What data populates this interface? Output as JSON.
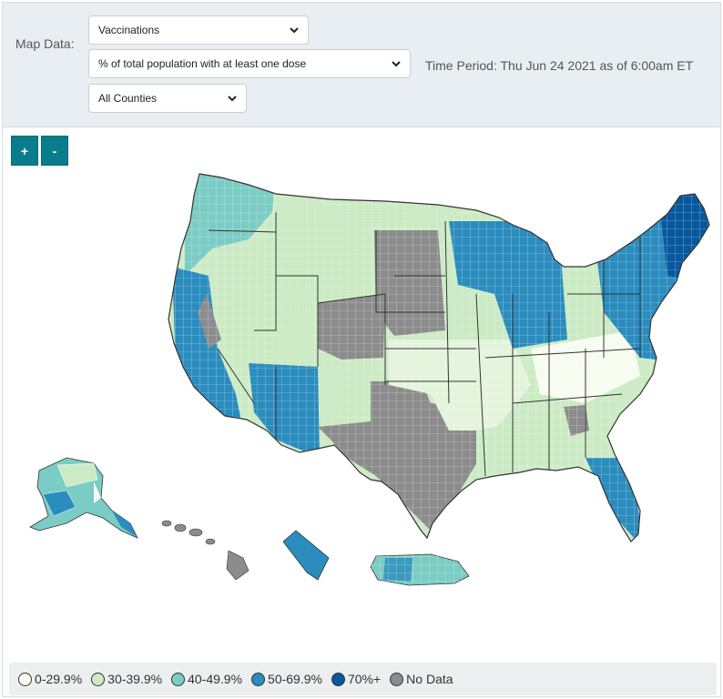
{
  "controls": {
    "map_data_label": "Map Data:",
    "data_select": "Vaccinations",
    "metric_select": "% of total population with at least one dose",
    "county_select": "All Counties",
    "time_period": "Time Period: Thu Jun 24 2021 as of 6:00am ET"
  },
  "zoom": {
    "in_label": "+",
    "out_label": "-"
  },
  "colors": {
    "c0": "#f7fcf0",
    "c1": "#ccebc5",
    "c2": "#7bccc4",
    "c3": "#2b8cbe",
    "c4": "#08589e",
    "nodata": "#8c8c8c"
  },
  "legend": [
    {
      "label": "0-29.9%",
      "color": "#f7fcf0"
    },
    {
      "label": "30-39.9%",
      "color": "#ccebc5"
    },
    {
      "label": "40-49.9%",
      "color": "#7bccc4"
    },
    {
      "label": "50-69.9%",
      "color": "#2b8cbe"
    },
    {
      "label": "70%+",
      "color": "#08589e"
    },
    {
      "label": "No Data",
      "color": "#8c8c8c"
    }
  ]
}
